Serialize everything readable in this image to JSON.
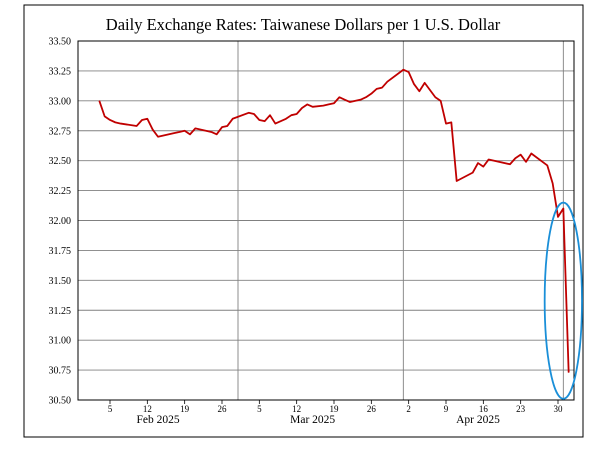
{
  "colors": {
    "background": "#ffffff",
    "border": "#000000",
    "grid": "#808080",
    "series": "#c00000",
    "annotation": "#1a8fd8"
  },
  "chart_data": {
    "type": "line",
    "title": "Daily Exchange Rates: Taiwanese Dollars per 1 U.S. Dollar",
    "xlabel": "",
    "ylabel": "",
    "ylim": [
      30.5,
      33.5
    ],
    "xlim": [
      "2025-01-30",
      "2025-05-03"
    ],
    "y_ticks": [
      "33.50",
      "33.25",
      "33.00",
      "32.75",
      "32.50",
      "32.25",
      "32.00",
      "31.75",
      "31.50",
      "31.25",
      "31.00",
      "30.75",
      "30.50"
    ],
    "x_day_ticks": [
      {
        "date": "2025-02-05",
        "label": "5"
      },
      {
        "date": "2025-02-12",
        "label": "12"
      },
      {
        "date": "2025-02-19",
        "label": "19"
      },
      {
        "date": "2025-02-26",
        "label": "26"
      },
      {
        "date": "2025-03-05",
        "label": "5"
      },
      {
        "date": "2025-03-12",
        "label": "12"
      },
      {
        "date": "2025-03-19",
        "label": "19"
      },
      {
        "date": "2025-03-26",
        "label": "26"
      },
      {
        "date": "2025-04-02",
        "label": "2"
      },
      {
        "date": "2025-04-09",
        "label": "9"
      },
      {
        "date": "2025-04-16",
        "label": "16"
      },
      {
        "date": "2025-04-23",
        "label": "23"
      },
      {
        "date": "2025-04-30",
        "label": "30"
      }
    ],
    "x_month_labels": [
      {
        "date": "2025-02-14",
        "label": "Feb 2025"
      },
      {
        "date": "2025-03-15",
        "label": "Mar 2025"
      },
      {
        "date": "2025-04-15",
        "label": "Apr 2025"
      }
    ],
    "month_gridlines": [
      "2025-03-01",
      "2025-04-01",
      "2025-05-01"
    ],
    "grid": true,
    "series": [
      {
        "points": [
          [
            "2025-02-03",
            33.0
          ],
          [
            "2025-02-04",
            32.87
          ],
          [
            "2025-02-05",
            32.84
          ],
          [
            "2025-02-06",
            32.82
          ],
          [
            "2025-02-07",
            32.81
          ],
          [
            "2025-02-10",
            32.79
          ],
          [
            "2025-02-11",
            32.84
          ],
          [
            "2025-02-12",
            32.85
          ],
          [
            "2025-02-13",
            32.76
          ],
          [
            "2025-02-14",
            32.7
          ],
          [
            "2025-02-17",
            32.73
          ],
          [
            "2025-02-18",
            32.74
          ],
          [
            "2025-02-19",
            32.75
          ],
          [
            "2025-02-20",
            32.72
          ],
          [
            "2025-02-21",
            32.77
          ],
          [
            "2025-02-24",
            32.74
          ],
          [
            "2025-02-25",
            32.72
          ],
          [
            "2025-02-26",
            32.78
          ],
          [
            "2025-02-27",
            32.79
          ],
          [
            "2025-02-28",
            32.85
          ],
          [
            "2025-03-03",
            32.9
          ],
          [
            "2025-03-04",
            32.89
          ],
          [
            "2025-03-05",
            32.84
          ],
          [
            "2025-03-06",
            32.83
          ],
          [
            "2025-03-07",
            32.88
          ],
          [
            "2025-03-08",
            32.81
          ],
          [
            "2025-03-10",
            32.85
          ],
          [
            "2025-03-11",
            32.88
          ],
          [
            "2025-03-12",
            32.89
          ],
          [
            "2025-03-13",
            32.94
          ],
          [
            "2025-03-14",
            32.97
          ],
          [
            "2025-03-15",
            32.95
          ],
          [
            "2025-03-17",
            32.96
          ],
          [
            "2025-03-18",
            32.97
          ],
          [
            "2025-03-19",
            32.98
          ],
          [
            "2025-03-20",
            33.03
          ],
          [
            "2025-03-21",
            33.01
          ],
          [
            "2025-03-22",
            32.99
          ],
          [
            "2025-03-24",
            33.01
          ],
          [
            "2025-03-25",
            33.03
          ],
          [
            "2025-03-26",
            33.06
          ],
          [
            "2025-03-27",
            33.1
          ],
          [
            "2025-03-28",
            33.11
          ],
          [
            "2025-03-29",
            33.16
          ],
          [
            "2025-04-01",
            33.26
          ],
          [
            "2025-04-02",
            33.24
          ],
          [
            "2025-04-03",
            33.14
          ],
          [
            "2025-04-04",
            33.08
          ],
          [
            "2025-04-05",
            33.15
          ],
          [
            "2025-04-07",
            33.03
          ],
          [
            "2025-04-08",
            33.0
          ],
          [
            "2025-04-09",
            32.81
          ],
          [
            "2025-04-10",
            32.82
          ],
          [
            "2025-04-11",
            32.33
          ],
          [
            "2025-04-14",
            32.4
          ],
          [
            "2025-04-15",
            32.48
          ],
          [
            "2025-04-16",
            32.45
          ],
          [
            "2025-04-17",
            32.51
          ],
          [
            "2025-04-21",
            32.47
          ],
          [
            "2025-04-22",
            32.52
          ],
          [
            "2025-04-23",
            32.55
          ],
          [
            "2025-04-24",
            32.49
          ],
          [
            "2025-04-25",
            32.56
          ],
          [
            "2025-04-28",
            32.46
          ],
          [
            "2025-04-29",
            32.31
          ],
          [
            "2025-04-30",
            32.03
          ],
          [
            "2025-05-01",
            32.1
          ],
          [
            "2025-05-02",
            30.73
          ]
        ]
      }
    ],
    "annotations": [
      {
        "shape": "ellipse",
        "color": "#1a8fd8",
        "center": [
          "2025-05-01",
          31.33
        ],
        "radius_x_days": 3.5,
        "radius_y": 0.82
      }
    ]
  }
}
